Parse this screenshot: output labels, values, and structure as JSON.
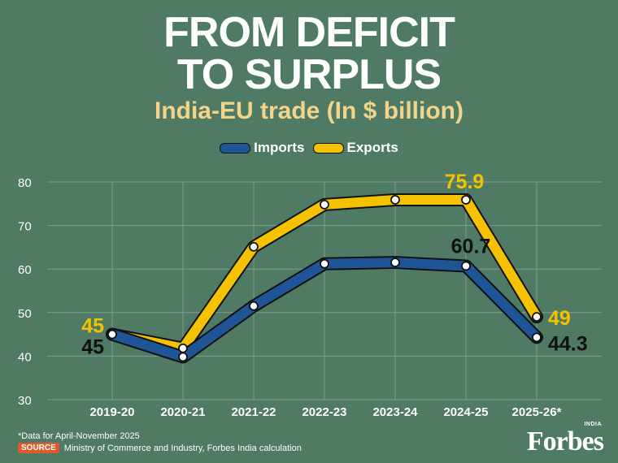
{
  "header": {
    "title_line1": "FROM DEFICIT",
    "title_line2": "TO SURPLUS",
    "subtitle": "India-EU trade (In $ billion)"
  },
  "legend": [
    {
      "label": "Imports",
      "color": "#1f5597"
    },
    {
      "label": "Exports",
      "color": "#f5c200"
    }
  ],
  "chart_data": {
    "type": "line",
    "title": "India-EU trade (In $ billion)",
    "categories": [
      "2019-20",
      "2020-21",
      "2021-22",
      "2022-23",
      "2023-24",
      "2024-25",
      "2025-26*"
    ],
    "ylim": [
      30,
      80
    ],
    "yticks": [
      30,
      40,
      50,
      60,
      70,
      80
    ],
    "grid": true,
    "series": [
      {
        "name": "Imports",
        "color": "#1f5597",
        "values": [
          45,
          39.8,
          51.5,
          61.2,
          61.5,
          60.7,
          44.3
        ]
      },
      {
        "name": "Exports",
        "color": "#f5c200",
        "values": [
          45,
          41.8,
          65.1,
          74.8,
          75.9,
          75.9,
          49
        ]
      }
    ],
    "data_labels": [
      {
        "series": "Exports",
        "index": 0,
        "text": "45",
        "color": "#f5c200"
      },
      {
        "series": "Imports",
        "index": 0,
        "text": "45",
        "color": "#111111"
      },
      {
        "series": "Exports",
        "index": 5,
        "text": "75.9",
        "color": "#f5c200"
      },
      {
        "series": "Imports",
        "index": 5,
        "text": "60.7",
        "color": "#111111"
      },
      {
        "series": "Exports",
        "index": 6,
        "text": "49",
        "color": "#f5c200"
      },
      {
        "series": "Imports",
        "index": 6,
        "text": "44.3",
        "color": "#111111"
      }
    ]
  },
  "footer": {
    "note": "*Data for April-November 2025",
    "source_badge": "SOURCE",
    "source_text": "Ministry of Commerce and Industry, Forbes India calculation",
    "brand": "Forbes",
    "brand_edition": "INDIA"
  }
}
